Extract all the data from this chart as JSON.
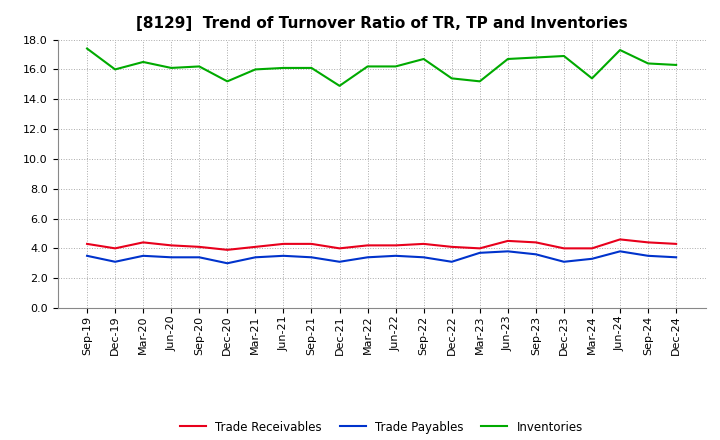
{
  "title": "[8129]  Trend of Turnover Ratio of TR, TP and Inventories",
  "x_labels": [
    "Sep-19",
    "Dec-19",
    "Mar-20",
    "Jun-20",
    "Sep-20",
    "Dec-20",
    "Mar-21",
    "Jun-21",
    "Sep-21",
    "Dec-21",
    "Mar-22",
    "Jun-22",
    "Sep-22",
    "Dec-22",
    "Mar-23",
    "Jun-23",
    "Sep-23",
    "Dec-23",
    "Mar-24",
    "Jun-24",
    "Sep-24",
    "Dec-24"
  ],
  "trade_receivables": [
    4.3,
    4.0,
    4.4,
    4.2,
    4.1,
    3.9,
    4.1,
    4.3,
    4.3,
    4.0,
    4.2,
    4.2,
    4.3,
    4.1,
    4.0,
    4.5,
    4.4,
    4.0,
    4.0,
    4.6,
    4.4,
    4.3
  ],
  "trade_payables": [
    3.5,
    3.1,
    3.5,
    3.4,
    3.4,
    3.0,
    3.4,
    3.5,
    3.4,
    3.1,
    3.4,
    3.5,
    3.4,
    3.1,
    3.7,
    3.8,
    3.6,
    3.1,
    3.3,
    3.8,
    3.5,
    3.4
  ],
  "inventories": [
    17.4,
    16.0,
    16.5,
    16.1,
    16.2,
    15.2,
    16.0,
    16.1,
    16.1,
    14.9,
    16.2,
    16.2,
    16.7,
    15.4,
    15.2,
    16.7,
    16.8,
    16.9,
    15.4,
    17.3,
    16.4,
    16.3
  ],
  "color_tr": "#e8001c",
  "color_tp": "#0033cc",
  "color_inv": "#00aa00",
  "ylim": [
    0.0,
    18.0
  ],
  "yticks": [
    0.0,
    2.0,
    4.0,
    6.0,
    8.0,
    10.0,
    12.0,
    14.0,
    16.0,
    18.0
  ],
  "legend_labels": [
    "Trade Receivables",
    "Trade Payables",
    "Inventories"
  ],
  "background_color": "#ffffff",
  "plot_bg_color": "#ffffff",
  "title_fontsize": 11,
  "tick_fontsize": 8,
  "linewidth": 1.5
}
